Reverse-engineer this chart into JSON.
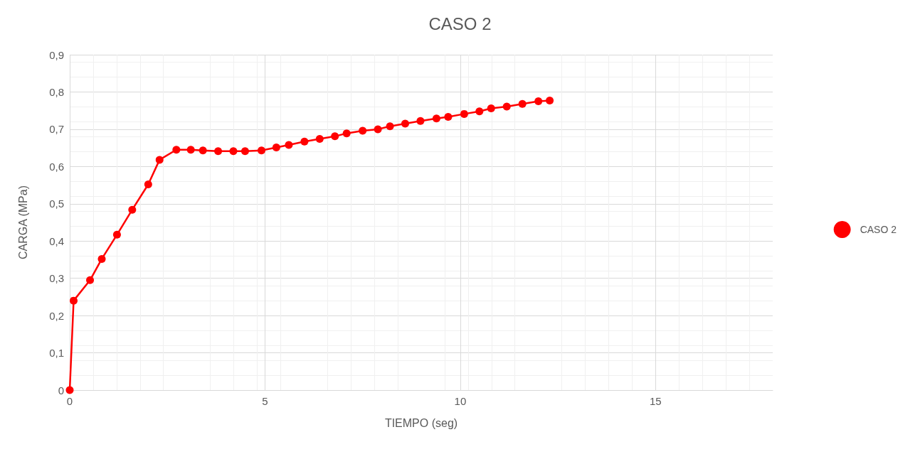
{
  "chart_data": {
    "type": "line",
    "title": "CASO 2",
    "xlabel": "TIEMPO (seg)",
    "ylabel": "CARGA (MPa)",
    "xlim": [
      0,
      18
    ],
    "xticks": [
      0,
      5,
      10,
      15
    ],
    "ylim": [
      0,
      0.9
    ],
    "yticks": [
      {
        "value": 0,
        "label": "0"
      },
      {
        "value": 0.1,
        "label": "0,1"
      },
      {
        "value": 0.2,
        "label": "0,2"
      },
      {
        "value": 0.3,
        "label": "0,3"
      },
      {
        "value": 0.4,
        "label": "0,4"
      },
      {
        "value": 0.5,
        "label": "0,5"
      },
      {
        "value": 0.6,
        "label": "0,6"
      },
      {
        "value": 0.7,
        "label": "0,7"
      },
      {
        "value": 0.8,
        "label": "0,8"
      },
      {
        "value": 0.9,
        "label": "0,9"
      }
    ],
    "grid": true,
    "legend": "right",
    "marker": "circle",
    "line_style": "solid",
    "series": [
      {
        "name": "CASO 2",
        "color": "#ff0000",
        "x": [
          0,
          0.1,
          0.52,
          0.82,
          1.21,
          1.6,
          2.01,
          2.3,
          2.73,
          3.1,
          3.41,
          3.8,
          4.19,
          4.49,
          4.91,
          5.29,
          5.61,
          6.01,
          6.4,
          6.79,
          7.09,
          7.5,
          7.89,
          8.2,
          8.59,
          8.98,
          9.39,
          9.69,
          10.1,
          10.49,
          10.79,
          11.19,
          11.59,
          12.0,
          12.29
        ],
        "values": [
          0,
          0.24,
          0.295,
          0.352,
          0.417,
          0.484,
          0.552,
          0.618,
          0.645,
          0.645,
          0.643,
          0.641,
          0.641,
          0.641,
          0.643,
          0.651,
          0.658,
          0.667,
          0.674,
          0.681,
          0.689,
          0.696,
          0.7,
          0.708,
          0.715,
          0.722,
          0.729,
          0.733,
          0.741,
          0.748,
          0.756,
          0.761,
          0.768,
          0.775,
          0.777
        ]
      }
    ]
  }
}
